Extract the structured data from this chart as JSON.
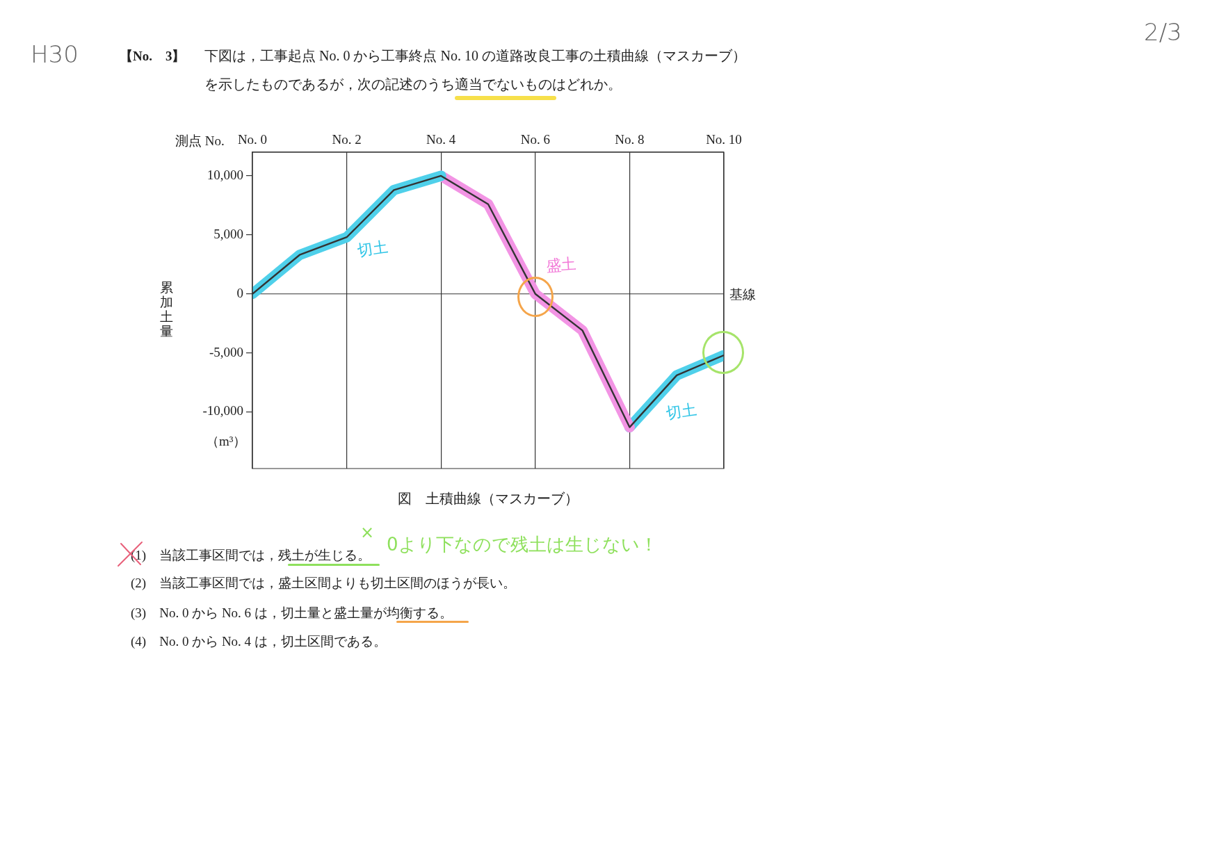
{
  "chart_data": {
    "type": "line",
    "title": "【No.　3】",
    "subtitle": "下図は，工事起点 No. 0 から工事終点 No. 10 の道路改良工事の土積曲線（マスカーブ）を示したものであるが，次の記述のうち適当でないものはどれか。",
    "xlabel": "測点 No.",
    "ylabel": "累加土量",
    "x": [
      0,
      1,
      2,
      3,
      4,
      5,
      6,
      7,
      8,
      9,
      10
    ],
    "series": [
      {
        "color": "#333333",
        "values": [
          0,
          3300,
          4800,
          8800,
          10000,
          7600,
          0,
          -3100,
          -11300,
          -6900,
          -5200
        ]
      },
      {
        "color": "#4fd0ea",
        "x": [
          0,
          1,
          2,
          3,
          4
        ],
        "values": [
          0,
          3300,
          4800,
          8800,
          10000
        ]
      },
      {
        "color": "#f294e4",
        "x": [
          4,
          5,
          6,
          7,
          8
        ],
        "values": [
          10000,
          7600,
          0,
          -3100,
          -11300
        ]
      },
      {
        "color": "#4fd0ea",
        "x": [
          8,
          9,
          10
        ],
        "values": [
          -11300,
          -6900,
          -5200
        ]
      }
    ],
    "xlim": [
      0,
      10
    ],
    "xticks": [
      {
        "value": 0,
        "label": "No. 0"
      },
      {
        "value": 2,
        "label": "No. 2"
      },
      {
        "value": 4,
        "label": "No. 4"
      },
      {
        "value": 6,
        "label": "No. 6"
      },
      {
        "value": 8,
        "label": "No. 8"
      },
      {
        "value": 10,
        "label": "No. 10"
      }
    ],
    "ylim": [
      -14800,
      12000
    ],
    "yticks": [
      {
        "value": -10000,
        "label": "-10,000"
      },
      {
        "value": -5000,
        "label": "-5,000"
      },
      0,
      {
        "value": 5000,
        "label": "5,000"
      },
      {
        "value": 10000,
        "label": "10,000"
      }
    ],
    "grid": "x",
    "marker": "none",
    "line_style": "solid",
    "ref_lines": [
      {
        "axis": "y",
        "value": 0,
        "label": "基線"
      }
    ],
    "annotations": [
      "H30",
      "2/3",
      "（m³）",
      "図　土積曲線（マスカーブ）",
      "(1)　当該工事区間では，残土が生じる。",
      "×",
      "0より下なので残土は生じない！",
      "(2)　当該工事区間では，盛土区間よりも切土区間のほうが長い。",
      "(3)　No. 0 から No. 6 は，切土量と盛土量が均衡する。",
      "(4)　No. 0 から No. 4 は，切土区間である。",
      "切土",
      "盛土",
      "切土"
    ]
  }
}
